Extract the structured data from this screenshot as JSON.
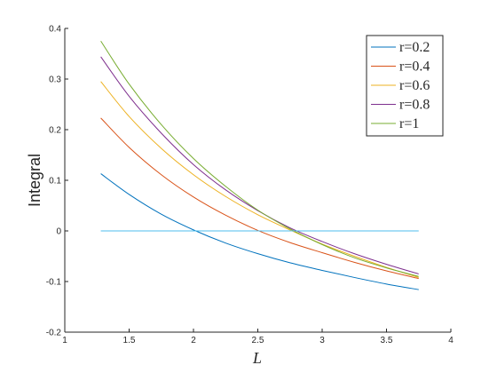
{
  "chart_data": {
    "type": "line",
    "title": "",
    "xlabel": "L",
    "ylabel": "Integral",
    "xlim": [
      1,
      4
    ],
    "ylim": [
      -0.2,
      0.4
    ],
    "xticks": [
      1,
      1.5,
      2,
      2.5,
      3,
      3.5,
      4
    ],
    "xtick_labels": [
      "1",
      "1.5",
      "2",
      "2.5",
      "3",
      "3.5",
      "4"
    ],
    "yticks": [
      -0.2,
      -0.1,
      0,
      0.1,
      0.2,
      0.3,
      0.4
    ],
    "ytick_labels": [
      "-0.2",
      "-0.1",
      "0",
      "0.1",
      "0.2",
      "0.3",
      "0.4"
    ],
    "grid": false,
    "legend_position": "top-right",
    "x": [
      1.28,
      1.5,
      1.75,
      2.0,
      2.25,
      2.5,
      2.75,
      3.0,
      3.25,
      3.5,
      3.75
    ],
    "series": [
      {
        "name": "r=0.2",
        "color": "#0072BD",
        "values": [
          0.113,
          0.072,
          0.033,
          0.002,
          -0.024,
          -0.045,
          -0.063,
          -0.078,
          -0.092,
          -0.105,
          -0.116
        ]
      },
      {
        "name": "r=0.4",
        "color": "#D95319",
        "values": [
          0.223,
          0.165,
          0.111,
          0.067,
          0.031,
          0.001,
          -0.023,
          -0.043,
          -0.062,
          -0.079,
          -0.094
        ]
      },
      {
        "name": "r=0.6",
        "color": "#EDB120",
        "values": [
          0.295,
          0.226,
          0.163,
          0.111,
          0.068,
          0.032,
          0.002,
          -0.026,
          -0.05,
          -0.072,
          -0.092
        ]
      },
      {
        "name": "r=0.8",
        "color": "#7E2F8E",
        "values": [
          0.344,
          0.266,
          0.193,
          0.131,
          0.081,
          0.04,
          0.006,
          -0.021,
          -0.045,
          -0.066,
          -0.085
        ]
      },
      {
        "name": "r=1",
        "color": "#77AC30",
        "values": [
          0.375,
          0.29,
          0.21,
          0.143,
          0.088,
          0.041,
          0.004,
          -0.027,
          -0.053,
          -0.073,
          -0.09
        ]
      },
      {
        "name": "",
        "color": "#4DBEEE",
        "values": [
          0,
          0,
          0,
          0,
          0,
          0,
          0,
          0,
          0,
          0,
          0
        ]
      }
    ],
    "legend": [
      {
        "label": "r=0.2",
        "color": "#0072BD"
      },
      {
        "label": "r=0.4",
        "color": "#D95319"
      },
      {
        "label": "r=0.6",
        "color": "#EDB120"
      },
      {
        "label": "r=0.8",
        "color": "#7E2F8E"
      },
      {
        "label": "r=1",
        "color": "#77AC30"
      }
    ]
  }
}
